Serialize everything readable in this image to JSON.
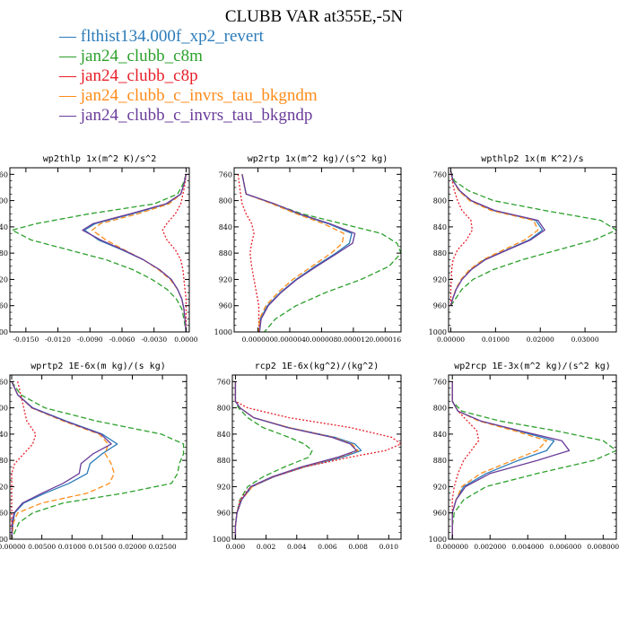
{
  "title": "CLUBB VAR at355E,-5N",
  "legend": [
    {
      "name": "flthist134.000f_xp2_revert",
      "color": "#2b7bb9"
    },
    {
      "name": "jan24_clubb_c8m",
      "color": "#2ca02c"
    },
    {
      "name": "jan24_clubb_c8p",
      "color": "#e8202a"
    },
    {
      "name": "jan24_clubb_c_invrs_tau_bkgndm",
      "color": "#ff8c1a"
    },
    {
      "name": "jan24_clubb_c_invrs_tau_bkgndp",
      "color": "#6a3d9a"
    }
  ],
  "chart_data": [
    {
      "type": "line",
      "title": "wp2thlp   1x(m^2 K)/s^2",
      "xlim": [
        -0.0165,
        0.0003
      ],
      "ylim": [
        1000,
        750
      ],
      "xticks": [
        -0.015,
        -0.012,
        -0.009,
        -0.006,
        -0.003,
        0.0
      ],
      "xtick_labels": [
        "-0.0150",
        "-0.0120",
        "-0.0090",
        "-0.0060",
        "-0.0030",
        "0.0000"
      ],
      "yticks": [
        760,
        800,
        840,
        880,
        920,
        960,
        1000
      ],
      "y": [
        760,
        775,
        790,
        805,
        820,
        835,
        845,
        860,
        875,
        890,
        905,
        920,
        935,
        950,
        965,
        980,
        1000
      ],
      "series": [
        {
          "values": [
            0,
            -0.0002,
            -0.0005,
            -0.0018,
            -0.005,
            -0.0085,
            -0.0095,
            -0.0082,
            -0.006,
            -0.004,
            -0.0025,
            -0.0014,
            -0.0008,
            -0.0004,
            -0.0002,
            -0.0001,
            0
          ]
        },
        {
          "values": [
            0,
            -0.0003,
            -0.0008,
            -0.003,
            -0.009,
            -0.014,
            -0.0163,
            -0.0145,
            -0.011,
            -0.0075,
            -0.005,
            -0.0032,
            -0.0018,
            -0.0009,
            -0.0004,
            -0.0002,
            0
          ]
        },
        {
          "values": [
            0,
            -0.0001,
            -0.0003,
            -0.0005,
            -0.001,
            -0.0018,
            -0.0022,
            -0.0018,
            -0.001,
            -0.0005,
            -0.0003,
            -0.0002,
            -0.0001,
            0,
            0,
            0,
            0
          ]
        },
        {
          "values": [
            0,
            -0.0002,
            -0.0005,
            -0.0016,
            -0.0045,
            -0.008,
            -0.0088,
            -0.0075,
            -0.0058,
            -0.004,
            -0.0026,
            -0.0015,
            -0.0008,
            -0.0004,
            -0.0002,
            -0.0001,
            0
          ]
        },
        {
          "values": [
            0,
            -0.0002,
            -0.0005,
            -0.0019,
            -0.0052,
            -0.0087,
            -0.0097,
            -0.008,
            -0.0059,
            -0.004,
            -0.0025,
            -0.0014,
            -0.0008,
            -0.0004,
            -0.0002,
            -0.0001,
            0
          ]
        }
      ]
    },
    {
      "type": "line",
      "title": "wp2rtp   1x(m^2 kg)/(s^2 kg)",
      "xlim": [
        -3e-06,
        1.8e-05
      ],
      "ylim": [
        1000,
        750
      ],
      "xticks": [
        0,
        4e-06,
        8e-06,
        1.2e-05,
        1.6e-05
      ],
      "xtick_labels": [
        "0.000000",
        "0.000004",
        "0.000008",
        "0.000012",
        "0.000016"
      ],
      "yticks": [
        760,
        800,
        840,
        880,
        920,
        960,
        1000
      ],
      "y": [
        760,
        790,
        805,
        820,
        835,
        850,
        865,
        880,
        900,
        920,
        940,
        960,
        980,
        1000
      ],
      "series": [
        {
          "values": [
            -2e-06,
            -1.5e-06,
            2e-06,
            5e-06,
            8.8e-06,
            1.18e-05,
            1.15e-05,
            9.8e-06,
            7.2e-06,
            4.8e-06,
            2.8e-06,
            1.2e-06,
            3e-07,
            2e-07
          ]
        },
        {
          "values": [
            -2e-06,
            -1.5e-06,
            2e-06,
            5.5e-06,
            1.05e-05,
            1.55e-05,
            1.75e-05,
            1.8e-05,
            1.65e-05,
            1.3e-05,
            8.5e-06,
            4.8e-06,
            2.2e-06,
            8e-07
          ]
        },
        {
          "values": [
            -2.5e-06,
            -2.2e-06,
            -2e-06,
            -1.5e-06,
            -8e-07,
            -5e-07,
            -8e-07,
            -1e-06,
            -8e-07,
            -5e-07,
            -2e-07,
            1e-07,
            1e-07,
            1e-07
          ]
        },
        {
          "values": [
            -2e-06,
            -1.5e-06,
            1.8e-06,
            4.8e-06,
            8.2e-06,
            1.08e-05,
            1.06e-05,
            9.2e-06,
            6.8e-06,
            4.4e-06,
            2.5e-06,
            1e-06,
            2e-07,
            1e-07
          ]
        },
        {
          "values": [
            -2e-06,
            -1.5e-06,
            2.1e-06,
            5.2e-06,
            9e-06,
            1.22e-05,
            1.19e-05,
            1e-05,
            7.4e-06,
            4.9e-06,
            2.9e-06,
            1.3e-06,
            4e-07,
            2e-07
          ]
        }
      ]
    },
    {
      "type": "line",
      "title": "wpthlp2   1x(m K^2)/s",
      "xlim": [
        -0.0005,
        0.037
      ],
      "ylim": [
        1000,
        750
      ],
      "xticks": [
        0,
        0.01,
        0.02,
        0.03
      ],
      "xtick_labels": [
        "0.00000",
        "0.01000",
        "0.02000",
        "0.03000"
      ],
      "yticks": [
        760,
        800,
        840,
        880,
        920,
        960,
        1000
      ],
      "y": [
        755,
        770,
        785,
        800,
        815,
        830,
        845,
        860,
        875,
        890,
        905,
        920,
        935,
        950,
        960
      ],
      "series": [
        {
          "values": [
            0,
            0.0005,
            0.002,
            0.0045,
            0.0095,
            0.019,
            0.0205,
            0.0175,
            0.0125,
            0.0075,
            0.0045,
            0.0025,
            0.0012,
            0.0004,
            0
          ]
        },
        {
          "values": [
            0,
            0.0008,
            0.004,
            0.0095,
            0.021,
            0.0335,
            0.037,
            0.032,
            0.024,
            0.016,
            0.0095,
            0.005,
            0.0025,
            0.001,
            0
          ]
        },
        {
          "values": [
            0,
            0.0003,
            0.0008,
            0.0015,
            0.0025,
            0.0045,
            0.0048,
            0.0035,
            0.0015,
            0.0005,
            0.0002,
            0.0001,
            0,
            0,
            0
          ]
        },
        {
          "values": [
            0,
            0.0005,
            0.0018,
            0.0042,
            0.009,
            0.0185,
            0.0195,
            0.0165,
            0.0118,
            0.0072,
            0.0042,
            0.0023,
            0.0011,
            0.0004,
            0
          ]
        },
        {
          "values": [
            0,
            0.0005,
            0.002,
            0.0046,
            0.0098,
            0.0195,
            0.021,
            0.0178,
            0.0127,
            0.0077,
            0.0046,
            0.0025,
            0.0012,
            0.0004,
            0
          ]
        }
      ]
    },
    {
      "type": "line",
      "title": "wprtp2   1E-6x(m kg)/(s kg)",
      "xlim": [
        -0.0003,
        0.029
      ],
      "ylim": [
        1000,
        750
      ],
      "xticks": [
        0,
        0.005,
        0.01,
        0.015,
        0.02,
        0.025
      ],
      "xtick_labels": [
        "0.00000",
        "0.00500",
        "0.01000",
        "0.01500",
        "0.02000",
        "0.02500"
      ],
      "yticks": [
        760,
        800,
        840,
        880,
        920,
        960,
        1000
      ],
      "y": [
        760,
        780,
        800,
        820,
        840,
        855,
        870,
        885,
        900,
        915,
        930,
        945,
        960,
        975,
        1000
      ],
      "series": [
        {
          "values": [
            0,
            0.001,
            0.0035,
            0.009,
            0.015,
            0.0175,
            0.015,
            0.013,
            0.0125,
            0.0095,
            0.0055,
            0.002,
            0.0005,
            0.0002,
            0
          ]
        },
        {
          "values": [
            0,
            0.0015,
            0.0055,
            0.014,
            0.0248,
            0.0285,
            0.0285,
            0.0278,
            0.0275,
            0.0265,
            0.0185,
            0.0085,
            0.0035,
            0.0012,
            0
          ]
        },
        {
          "values": [
            0.001,
            0.0015,
            0.002,
            0.0025,
            0.004,
            0.0035,
            0.002,
            0.0005,
            0,
            0,
            0,
            0,
            0,
            0,
            0
          ]
        },
        {
          "values": [
            0,
            0.001,
            0.0033,
            0.0085,
            0.0145,
            0.016,
            0.0155,
            0.0165,
            0.017,
            0.0162,
            0.0125,
            0.005,
            0.001,
            0.0003,
            0
          ]
        },
        {
          "values": [
            0,
            0.001,
            0.0034,
            0.0088,
            0.0148,
            0.0165,
            0.0135,
            0.0115,
            0.0112,
            0.0085,
            0.005,
            0.0018,
            0.0004,
            0.0001,
            0
          ]
        }
      ]
    },
    {
      "type": "line",
      "title": "rcp2   1E-6x(kg^2)/(kg^2)",
      "xlim": [
        -0.0002,
        0.0108
      ],
      "ylim": [
        1000,
        750
      ],
      "xticks": [
        0,
        0.002,
        0.004,
        0.006,
        0.008,
        0.01
      ],
      "xtick_labels": [
        "0.000",
        "0.002",
        "0.004",
        "0.006",
        "0.008",
        "0.010"
      ],
      "yticks": [
        760,
        800,
        840,
        880,
        920,
        960,
        1000
      ],
      "y": [
        760,
        790,
        800,
        815,
        830,
        845,
        855,
        865,
        875,
        890,
        905,
        920,
        940,
        960,
        980,
        1000
      ],
      "series": [
        {
          "values": [
            0,
            0,
            0.0003,
            0.0012,
            0.0035,
            0.0065,
            0.0078,
            0.0082,
            0.007,
            0.0045,
            0.0025,
            0.0011,
            0.0004,
            0.0001,
            0,
            0
          ]
        },
        {
          "values": [
            0,
            0,
            0.0002,
            0.0008,
            0.0018,
            0.0035,
            0.0045,
            0.005,
            0.0048,
            0.0032,
            0.0018,
            0.0008,
            0.0003,
            0.0001,
            0,
            0
          ]
        },
        {
          "values": [
            0,
            0,
            0.0008,
            0.0035,
            0.0075,
            0.0102,
            0.0108,
            0.0098,
            0.0075,
            0.0045,
            0.0025,
            0.001,
            0.0003,
            0.0001,
            0,
            0
          ]
        },
        {
          "values": [
            0,
            0,
            0.0003,
            0.0012,
            0.0035,
            0.0064,
            0.0076,
            0.008,
            0.0068,
            0.0044,
            0.0024,
            0.0011,
            0.0004,
            0.0001,
            0,
            0
          ]
        },
        {
          "values": [
            0,
            0,
            0.0003,
            0.0012,
            0.0034,
            0.0063,
            0.0075,
            0.0079,
            0.0067,
            0.0043,
            0.0024,
            0.001,
            0.0004,
            0.0001,
            0,
            0
          ]
        }
      ]
    },
    {
      "type": "line",
      "title": "wp2rcp   1E-3x(m^2 kg)/(s^2 kg)",
      "xlim": [
        -0.0002,
        0.0087
      ],
      "ylim": [
        1000,
        750
      ],
      "xticks": [
        0,
        0.002,
        0.004,
        0.006,
        0.008
      ],
      "xtick_labels": [
        "0.000000",
        "0.002000",
        "0.004000",
        "0.006000",
        "0.008000"
      ],
      "yticks": [
        760,
        800,
        840,
        880,
        920,
        960,
        1000
      ],
      "y": [
        760,
        790,
        805,
        820,
        835,
        850,
        865,
        880,
        900,
        920,
        940,
        960,
        980,
        1000
      ],
      "series": [
        {
          "values": [
            0,
            0,
            0.0003,
            0.0015,
            0.0035,
            0.0054,
            0.005,
            0.0035,
            0.0018,
            0.0006,
            0.0002,
            0,
            0,
            0
          ]
        },
        {
          "values": [
            0,
            0,
            0.0005,
            0.0025,
            0.0055,
            0.008,
            0.0087,
            0.0075,
            0.0045,
            0.0018,
            0.0006,
            0.0001,
            0,
            0
          ]
        },
        {
          "values": [
            0,
            0,
            0.0003,
            0.0008,
            0.0013,
            0.0014,
            0.001,
            0.0006,
            0.0003,
            0.0001,
            0,
            0,
            0,
            0
          ]
        },
        {
          "values": [
            0,
            0,
            0.0003,
            0.0014,
            0.0033,
            0.005,
            0.0045,
            0.0032,
            0.0015,
            0.0005,
            0.0002,
            0,
            0,
            0
          ]
        },
        {
          "values": [
            0,
            0,
            0.0003,
            0.0015,
            0.0036,
            0.0058,
            0.0062,
            0.0045,
            0.002,
            0.0007,
            0.0002,
            0,
            0,
            0
          ]
        }
      ]
    }
  ]
}
